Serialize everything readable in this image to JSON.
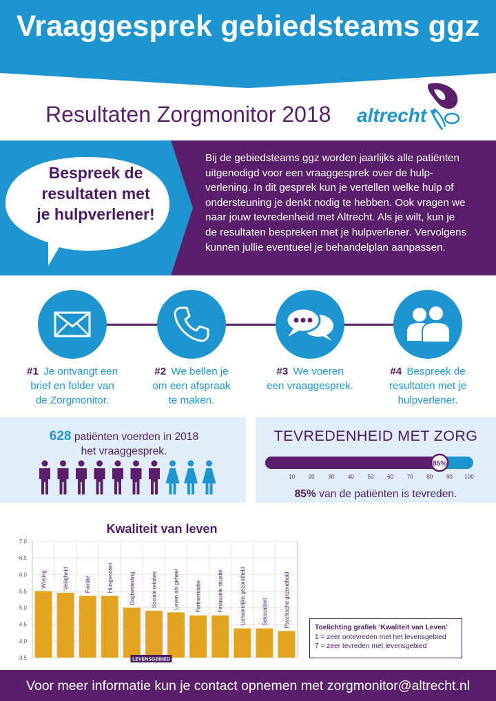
{
  "header": {
    "title": "Vraaggesprek gebiedsteams ggz",
    "subtitle": "Resultaten Zorgmonitor 2018",
    "logo_text": "altrecht"
  },
  "intro": {
    "bubble_lines": [
      "Bespreek de",
      "resultaten met",
      "je hulpverlener!"
    ],
    "paragraph_lines": [
      "Bij de gebiedsteams ggz worden jaarlijks alle patiënten",
      "uitgenodigd voor een vraaggesprek over de hulp-",
      "verlening. In dit gesprek kun je vertellen welke hulp of",
      "ondersteuning je denkt nodig te hebben. Ook vragen we",
      "naar jouw tevredenheid met Altrecht. Als je wilt, kun je",
      "de resultaten bespreken met je hulpverlener. Vervolgens",
      "kunnen jullie eventueel je behandelplan aanpassen."
    ]
  },
  "steps": [
    {
      "num": "#1",
      "icon": "envelope-icon",
      "lines": [
        "Je ontvangt een",
        "brief en folder van",
        "de Zorgmonitor."
      ]
    },
    {
      "num": "#2",
      "icon": "phone-icon",
      "lines": [
        "We bellen je",
        "om een afspraak",
        "te maken."
      ]
    },
    {
      "num": "#3",
      "icon": "chat-bubbles-icon",
      "lines": [
        "We voeren",
        "een vraaggesprek."
      ]
    },
    {
      "num": "#4",
      "icon": "people-icon",
      "lines": [
        "Bespreek de",
        "resultaten met je",
        "hulpverlener."
      ]
    }
  ],
  "stats": {
    "count": "628",
    "count_text_1": "patiënten voerden in 2018",
    "count_text_2": "het vraaggesprek.",
    "people_men": 7,
    "people_women": 3
  },
  "satisfaction": {
    "title": "TEVREDENHEID MET ZORG",
    "value": 85,
    "badge": "85%",
    "ticks": [
      "10",
      "20",
      "30",
      "40",
      "50",
      "60",
      "70",
      "80",
      "90",
      "100"
    ],
    "line_pct": "85%",
    "line_rest": "van de patiënten is tevreden."
  },
  "chart_data": {
    "type": "bar",
    "title": "Kwaliteit van leven",
    "categories": [
      "Woning",
      "Veiligheid",
      "Familie",
      "Huisgenoten",
      "Dagbesteding",
      "Sociale relaties",
      "Leven als geheel",
      "Partnerrelatie",
      "Financiële situatie",
      "Lichamelijke gezondheid",
      "Seksualiteit",
      "Psychische gezondheid"
    ],
    "values": [
      5.5,
      5.45,
      5.36,
      5.36,
      5.0,
      4.91,
      4.86,
      4.77,
      4.77,
      4.38,
      4.38,
      4.3
    ],
    "ylim": [
      3.5,
      7.0
    ],
    "yticks": [
      "3.5",
      "4.0",
      "4.5",
      "5.0",
      "5.5",
      "6.0",
      "6.5",
      "7.0"
    ],
    "xlabel": "LEVENSGEBIED",
    "grid": true,
    "bar_color": "#e3a51f",
    "legend": {
      "title": "Toelichting grafiek ‘Kwaliteit van Leven’",
      "line1": "1 = zeer ontevreden met het levensgebied",
      "line2": "7 = zeer tevreden met levensgebied"
    }
  },
  "footer": {
    "text": "Voor meer informatie kun je contact opnemen met zorgmonitor@altrecht.nl"
  },
  "colors": {
    "blue": "#1f95cf",
    "purple": "#5a1e6b",
    "dark_purple": "#4b1c63",
    "light_blue": "#e1eef7",
    "gold": "#e3a51f"
  }
}
